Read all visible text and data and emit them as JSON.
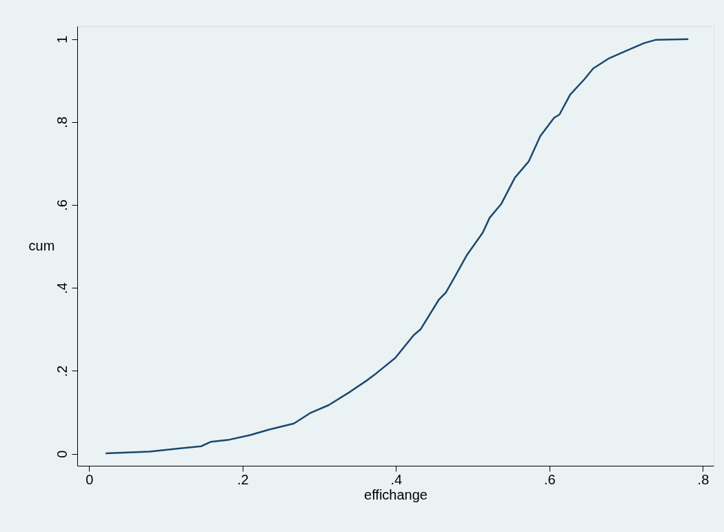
{
  "chart_data": {
    "type": "line",
    "xlabel": "effichange",
    "ylabel": "cum",
    "x": [
      0.0216,
      0.0786,
      0.1085,
      0.146,
      0.159,
      0.183,
      0.21,
      0.234,
      0.267,
      0.288,
      0.312,
      0.339,
      0.363,
      0.375,
      0.399,
      0.423,
      0.432,
      0.456,
      0.465,
      0.477,
      0.492,
      0.513,
      0.522,
      0.537,
      0.555,
      0.573,
      0.588,
      0.606,
      0.613,
      0.627,
      0.645,
      0.657,
      0.678,
      0.699,
      0.723,
      0.738,
      0.781
    ],
    "series": [
      {
        "color": "#1a476f",
        "values": [
          0.001,
          0.005,
          0.011,
          0.018,
          0.029,
          0.034,
          0.045,
          0.058,
          0.073,
          0.098,
          0.117,
          0.148,
          0.178,
          0.195,
          0.231,
          0.286,
          0.3,
          0.372,
          0.389,
          0.428,
          0.478,
          0.533,
          0.569,
          0.602,
          0.666,
          0.705,
          0.766,
          0.81,
          0.818,
          0.866,
          0.902,
          0.929,
          0.954,
          0.971,
          0.99,
          0.998,
          1.0
        ]
      }
    ],
    "xlim": [
      -0.0155,
      0.814
    ],
    "ylim": [
      -0.029,
      1.031
    ],
    "xticks": [
      0,
      {
        "value": 0.2,
        "label": ".2"
      },
      {
        "value": 0.4,
        "label": ".4"
      },
      {
        "value": 0.6,
        "label": ".6"
      },
      {
        "value": 0.8,
        "label": ".8"
      }
    ],
    "yticks": [
      0,
      {
        "value": 0.2,
        "label": ".2"
      },
      {
        "value": 0.4,
        "label": ".4"
      },
      {
        "value": 0.6,
        "label": ".6"
      },
      {
        "value": 0.8,
        "label": ".8"
      },
      1
    ],
    "grid": "y",
    "line_style": "solid",
    "marker": "none"
  }
}
